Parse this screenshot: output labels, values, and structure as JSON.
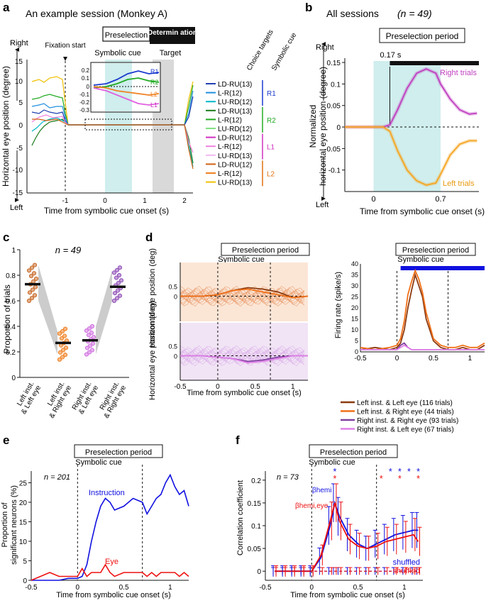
{
  "figure": {
    "panel_letters": [
      "a",
      "b",
      "c",
      "d",
      "e",
      "f"
    ],
    "colors": {
      "cyan_band": "#cfeeed",
      "gray_band": "#d9d9d9",
      "blue": "#1010e0",
      "red": "#ee1111",
      "magenta": "#c040c0",
      "orange": "#f5a623",
      "gray_fill": "#c8c8c8"
    }
  },
  "panel_a": {
    "title": "An example session (Monkey A)",
    "preselection_label": "Preselection",
    "determination_label": "Determin ation",
    "symbolic_cue_label": "Symbolic cue",
    "target_label": "Target",
    "fixation_label": "Fixation start",
    "y_top": "Right",
    "y_bottom": "Left",
    "ylabel": "Horizontal eye position (degree)",
    "xlabel": "Time from symbolic cue onset (s)",
    "x_ticks": [
      "-1",
      "0",
      "1",
      "2"
    ],
    "y_ticks": [
      "15",
      "10",
      "5",
      "0",
      "-5",
      "-10",
      "-15"
    ],
    "inset_ticks": [
      "0.2",
      "0.1",
      "0",
      "-0.1",
      "-0.2",
      "-0.3"
    ],
    "inset_labels": [
      "R1",
      "R2",
      "L2",
      "L1"
    ],
    "choice_targets_header": "Choice targets",
    "symbolic_cue_header": "Symbolic cue",
    "legend": [
      {
        "label": "LD-RU(13)",
        "color": "#2040b0"
      },
      {
        "label": "L-R(12)",
        "color": "#1e90e0"
      },
      {
        "label": "LU-RD(12)",
        "color": "#00b8c8"
      },
      {
        "label": "LD-RU(13)",
        "color": "#1a7a1a"
      },
      {
        "label": "L-R(12)",
        "color": "#22aa22"
      },
      {
        "label": "LU-RD(12)",
        "color": "#80e080"
      },
      {
        "label": "LD-RU(12)",
        "color": "#d030c0"
      },
      {
        "label": "L-R(12)",
        "color": "#f080e0"
      },
      {
        "label": "LU-RD(13)",
        "color": "#f0b8f0"
      },
      {
        "label": "LD-RU(12)",
        "color": "#d06010"
      },
      {
        "label": "L-R(12)",
        "color": "#f08020"
      },
      {
        "label": "LU-RD(13)",
        "color": "#f0c000"
      }
    ],
    "groups": [
      {
        "label": "R1",
        "color": "#1a3ad0"
      },
      {
        "label": "R2",
        "color": "#22aa22"
      },
      {
        "label": "L1",
        "color": "#d030c0"
      },
      {
        "label": "L2",
        "color": "#e07010"
      }
    ]
  },
  "panel_b": {
    "title": "All sessions",
    "n_label": "(n = 49)",
    "period_label": "Preselection period",
    "latency_label": "0.17 s",
    "y_top": "Right",
    "y_bottom": "Left",
    "ylabel_1": "Normalized",
    "ylabel_2": "horizontal eye position (degree)",
    "xlabel": "Time from symbolic cue onset (s)",
    "x_ticks": [
      "0",
      "0.7"
    ],
    "right_label": "Right trials",
    "left_label": "Left trials"
  },
  "panel_c": {
    "n_label": "n = 49",
    "ylabel": "Proportion of trials",
    "y_ticks": [
      "1",
      "0.8",
      "0.6",
      "0.4",
      "0.2",
      "0"
    ],
    "categories": [
      "Left inst. & Left eye",
      "Left inst. & Right eye",
      "Right inst. & Left eye",
      "Right inst. & Right eye"
    ]
  },
  "panel_d": {
    "period_label": "Preselection period",
    "period_label_right": "Preselection period",
    "cue_label": "Symbolic cue",
    "cue_label_right": "Symbolic cue",
    "ylabel_top": "Horizontal eye position (deg)",
    "ylabel_bottom": "Horizontal eye position (deg)",
    "tick_half": "0.5",
    "tick_zero": "0",
    "xlabel": "Time from symbolic cue onset (s)",
    "x_ticks": [
      "-0.5",
      "0",
      "0.5",
      "1"
    ],
    "rate_ylabel": "Firing rate (spike/s)",
    "rate_y_ticks": [
      "40",
      "35",
      "30",
      "25",
      "20",
      "15",
      "10",
      "5",
      "0"
    ],
    "legend": [
      {
        "label": "Left inst. & Left eye (116 trials)",
        "color": "#8b3a10"
      },
      {
        "label": "Left inst. & Right eye (44 trials)",
        "color": "#f07018"
      },
      {
        "label": "Right inst. & Right eye (93 trials)",
        "color": "#8040a0"
      },
      {
        "label": "Right inst. & Left eye (67 trials)",
        "color": "#e080e8"
      }
    ]
  },
  "panel_e": {
    "period_label": "Preselection period",
    "cue_label": "Symbolic cue",
    "n_label": "n = 201",
    "ylabel_1": "Proportion of",
    "ylabel_2": "significant neurons (%)",
    "xlabel": "Time from symbolic cue onset (s)",
    "x_ticks": [
      "-0.5",
      "0",
      "0.5",
      "1"
    ],
    "y_ticks": [
      "25",
      "20",
      "15",
      "10",
      "5",
      "0"
    ],
    "instruction_label": "Instruction",
    "eye_label": "Eye"
  },
  "panel_f": {
    "period_label": "Preselection period",
    "cue_label": "Symbolic cue",
    "n_label": "n = 73",
    "ylabel": "Correlation coefficient",
    "xlabel": "Time from symbolic cue onset (s)",
    "x_ticks": [
      "-0.5",
      "0",
      "0.5",
      "1"
    ],
    "y_ticks": [
      "0.2",
      "0.15",
      "0.1",
      "0.05",
      "0"
    ],
    "beta_hemi": "βhemi",
    "beta_hemi_eye": "βhemi,eye",
    "shuffled_blue": "shuffled",
    "shuffled_red": "shuffled",
    "star": "*"
  },
  "chart_data": [
    {
      "type": "line",
      "panel": "b",
      "title": "All sessions (n = 49)",
      "xlabel": "Time from symbolic cue onset (s)",
      "ylabel": "Normalized horizontal eye position (degree)",
      "xlim": [
        -0.3,
        1.1
      ],
      "ylim": [
        -0.15,
        0.16
      ],
      "x": [
        -0.3,
        -0.2,
        -0.1,
        0,
        0.1,
        0.17,
        0.25,
        0.35,
        0.45,
        0.55,
        0.65,
        0.7,
        0.8,
        0.9,
        1.0,
        1.08
      ],
      "series": [
        {
          "name": "Right trials",
          "values": [
            0,
            0,
            0,
            0,
            0,
            0.005,
            0.04,
            0.09,
            0.125,
            0.135,
            0.125,
            0.1,
            0.065,
            0.04,
            0.03,
            0.032
          ]
        },
        {
          "name": "Left trials",
          "values": [
            0,
            0,
            0,
            0,
            0,
            -0.01,
            -0.055,
            -0.1,
            -0.125,
            -0.135,
            -0.13,
            -0.11,
            -0.065,
            -0.04,
            -0.032,
            -0.032
          ]
        }
      ]
    },
    {
      "type": "scatter",
      "panel": "c",
      "ylabel": "Proportion of trials",
      "ylim": [
        0,
        1
      ],
      "categories": [
        "Left inst. & Left eye",
        "Left inst. & Right eye",
        "Right inst. & Left eye",
        "Right inst. & Right eye"
      ],
      "values": [
        0.73,
        0.27,
        0.29,
        0.71
      ]
    },
    {
      "type": "line",
      "panel": "d",
      "ylabel": "Firing rate (spike/s)",
      "xlim": [
        -0.5,
        1.2
      ],
      "ylim": [
        0,
        40
      ],
      "x": [
        -0.5,
        -0.3,
        -0.1,
        0,
        0.05,
        0.1,
        0.15,
        0.2,
        0.25,
        0.3,
        0.35,
        0.4,
        0.5,
        0.6,
        0.7,
        0.8,
        0.9,
        1.0,
        1.1,
        1.2
      ],
      "series": [
        {
          "name": "Left inst. & Left eye (116 trials)",
          "values": [
            1,
            2,
            1,
            2,
            4,
            10,
            20,
            28,
            35,
            30,
            25,
            15,
            5,
            2,
            1,
            1,
            2,
            1,
            1,
            3
          ]
        },
        {
          "name": "Left inst. & Right eye (44 trials)",
          "values": [
            2,
            1,
            2,
            3,
            6,
            14,
            26,
            32,
            37,
            33,
            27,
            18,
            6,
            3,
            2,
            2,
            3,
            2,
            2,
            4
          ]
        },
        {
          "name": "Right inst. & Right eye (93 trials)",
          "values": [
            1,
            1,
            1,
            1,
            3,
            4,
            2,
            1,
            1,
            1,
            1,
            1,
            1,
            1,
            1,
            1,
            1,
            1,
            1,
            1
          ]
        },
        {
          "name": "Right inst. & Left eye (67 trials)",
          "values": [
            1,
            1,
            1,
            1,
            2,
            3,
            2,
            1,
            1,
            1,
            1,
            1,
            1,
            1,
            1,
            1,
            1,
            1,
            1,
            1
          ]
        }
      ]
    },
    {
      "type": "line",
      "panel": "e",
      "ylabel": "Proportion of significant neurons (%)",
      "xlim": [
        -0.5,
        1.2
      ],
      "ylim": [
        0,
        28
      ],
      "x": [
        -0.5,
        -0.4,
        -0.3,
        -0.2,
        -0.1,
        0,
        0.05,
        0.1,
        0.15,
        0.2,
        0.25,
        0.3,
        0.35,
        0.4,
        0.5,
        0.6,
        0.7,
        0.75,
        0.8,
        0.85,
        0.9,
        0.95,
        1.0,
        1.05,
        1.1,
        1.15,
        1.2
      ],
      "series": [
        {
          "name": "Instruction",
          "values": [
            0,
            0,
            0,
            0,
            0.5,
            0.5,
            1,
            4,
            10,
            15,
            19,
            21,
            20,
            18,
            19,
            21,
            20,
            17,
            19,
            21,
            22,
            25,
            27,
            24,
            22,
            23,
            19
          ]
        },
        {
          "name": "Eye",
          "values": [
            0,
            1,
            2,
            1,
            1,
            1,
            3,
            1,
            2,
            2,
            2,
            4,
            2,
            1,
            2,
            2,
            2,
            1,
            2,
            1,
            2,
            2,
            2,
            2,
            1,
            2,
            1
          ]
        }
      ]
    },
    {
      "type": "line",
      "panel": "f",
      "ylabel": "Correlation coefficient",
      "xlim": [
        -0.5,
        1.2
      ],
      "ylim": [
        -0.02,
        0.22
      ],
      "x": [
        -0.4,
        -0.3,
        -0.2,
        -0.1,
        0,
        0.1,
        0.2,
        0.25,
        0.3,
        0.4,
        0.5,
        0.6,
        0.7,
        0.8,
        0.9,
        1.0,
        1.1,
        1.15
      ],
      "series": [
        {
          "name": "βhemi",
          "values": [
            0,
            0,
            0,
            0,
            0,
            0.03,
            0.1,
            0.15,
            0.12,
            0.08,
            0.06,
            0.05,
            0.06,
            0.07,
            0.08,
            0.085,
            0.09,
            0.09
          ]
        },
        {
          "name": "βhemi,eye",
          "values": [
            0,
            0,
            0,
            0,
            0,
            0.035,
            0.11,
            0.15,
            0.11,
            0.07,
            0.055,
            0.05,
            0.055,
            0.065,
            0.07,
            0.075,
            0.08,
            0.065
          ]
        },
        {
          "name": "shuffled (blue)",
          "values": [
            0,
            0,
            0,
            0,
            0,
            0,
            0,
            0,
            0,
            0,
            0,
            0,
            0,
            0,
            0,
            0,
            0,
            0
          ]
        },
        {
          "name": "shuffled (red)",
          "values": [
            0,
            0,
            0,
            0,
            0,
            0,
            0,
            0,
            0,
            0,
            0,
            0,
            0,
            0,
            0,
            0,
            0,
            0
          ]
        }
      ]
    }
  ]
}
